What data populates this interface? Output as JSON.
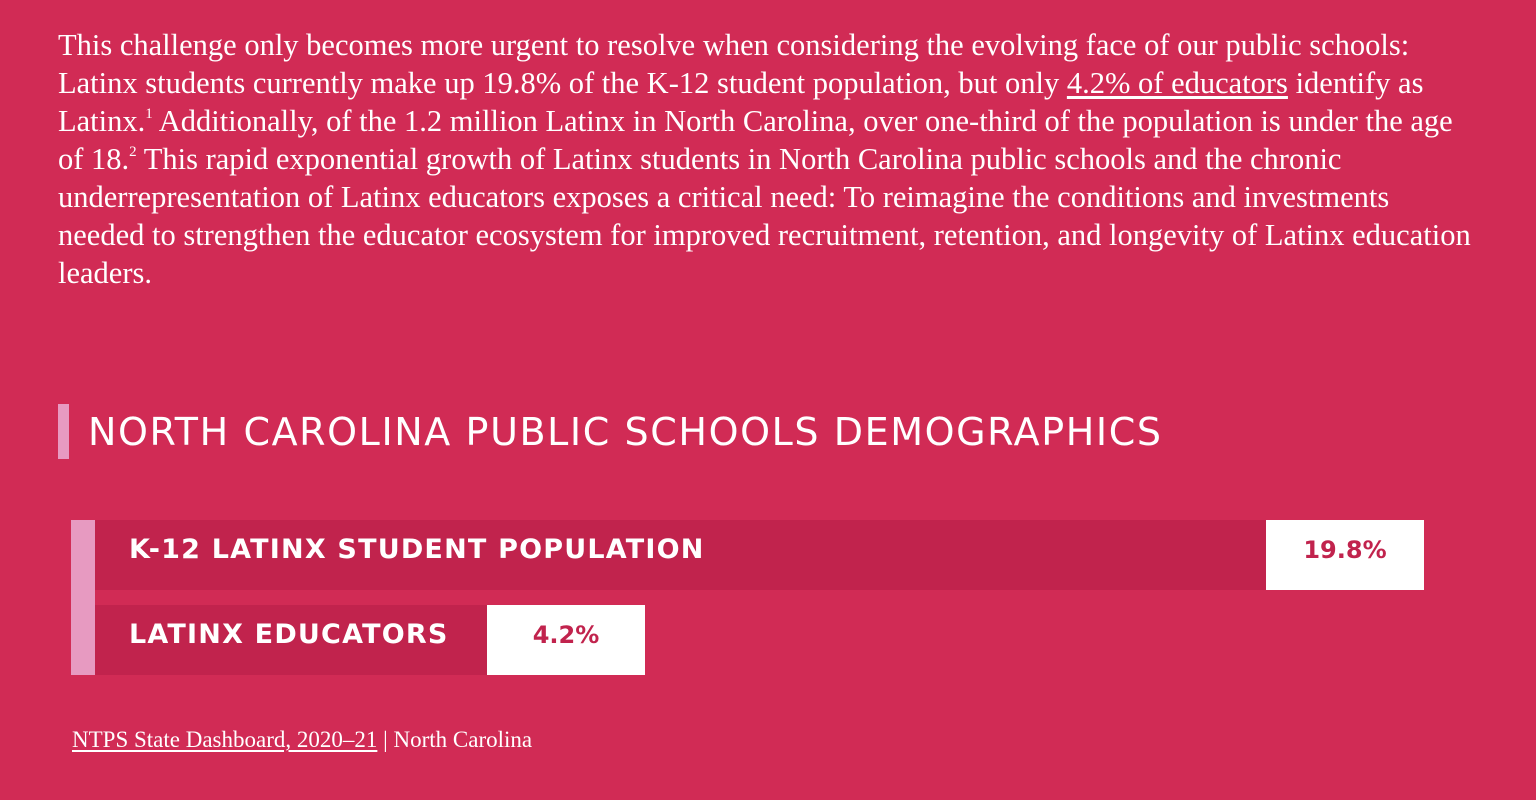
{
  "intro": {
    "part1": "This challenge only becomes more urgent to resolve when considering the evolving face of our public schools: Latinx students currently make up 19.8% of the K-12 student population, but only ",
    "link": "4.2% of educators",
    "part2": " identify as Latinx.",
    "footnote1": "1",
    "part3": " Additionally, of the 1.2 million Latinx in North Carolina, over one-third of the population is under the age of 18.",
    "footnote2": "2",
    "part4": " This rapid exponential growth of Latinx students in North Carolina public schools and the chronic underrepresentation of Latinx educators exposes a critical need: To reimagine the conditions and investments needed to strengthen the educator ecosystem for improved recruitment, retention, and longevity of Latinx education leaders."
  },
  "chart_data": {
    "type": "bar",
    "orientation": "horizontal",
    "title": "NORTH CAROLINA PUBLIC SCHOOLS DEMOGRAPHICS",
    "categories": [
      "K-12 LATINX STUDENT POPULATION",
      "LATINX EDUCATORS"
    ],
    "values": [
      19.8,
      4.2
    ],
    "value_labels": [
      "19.8%",
      "4.2%"
    ],
    "colors": {
      "background": "#d12b55",
      "bar": "#c1234d",
      "accent": "#e79ac1",
      "value_box": "#ffffff"
    }
  },
  "source": {
    "link": "NTPS State Dashboard, 2020–21",
    "separator": " | ",
    "region": "North Carolina"
  }
}
